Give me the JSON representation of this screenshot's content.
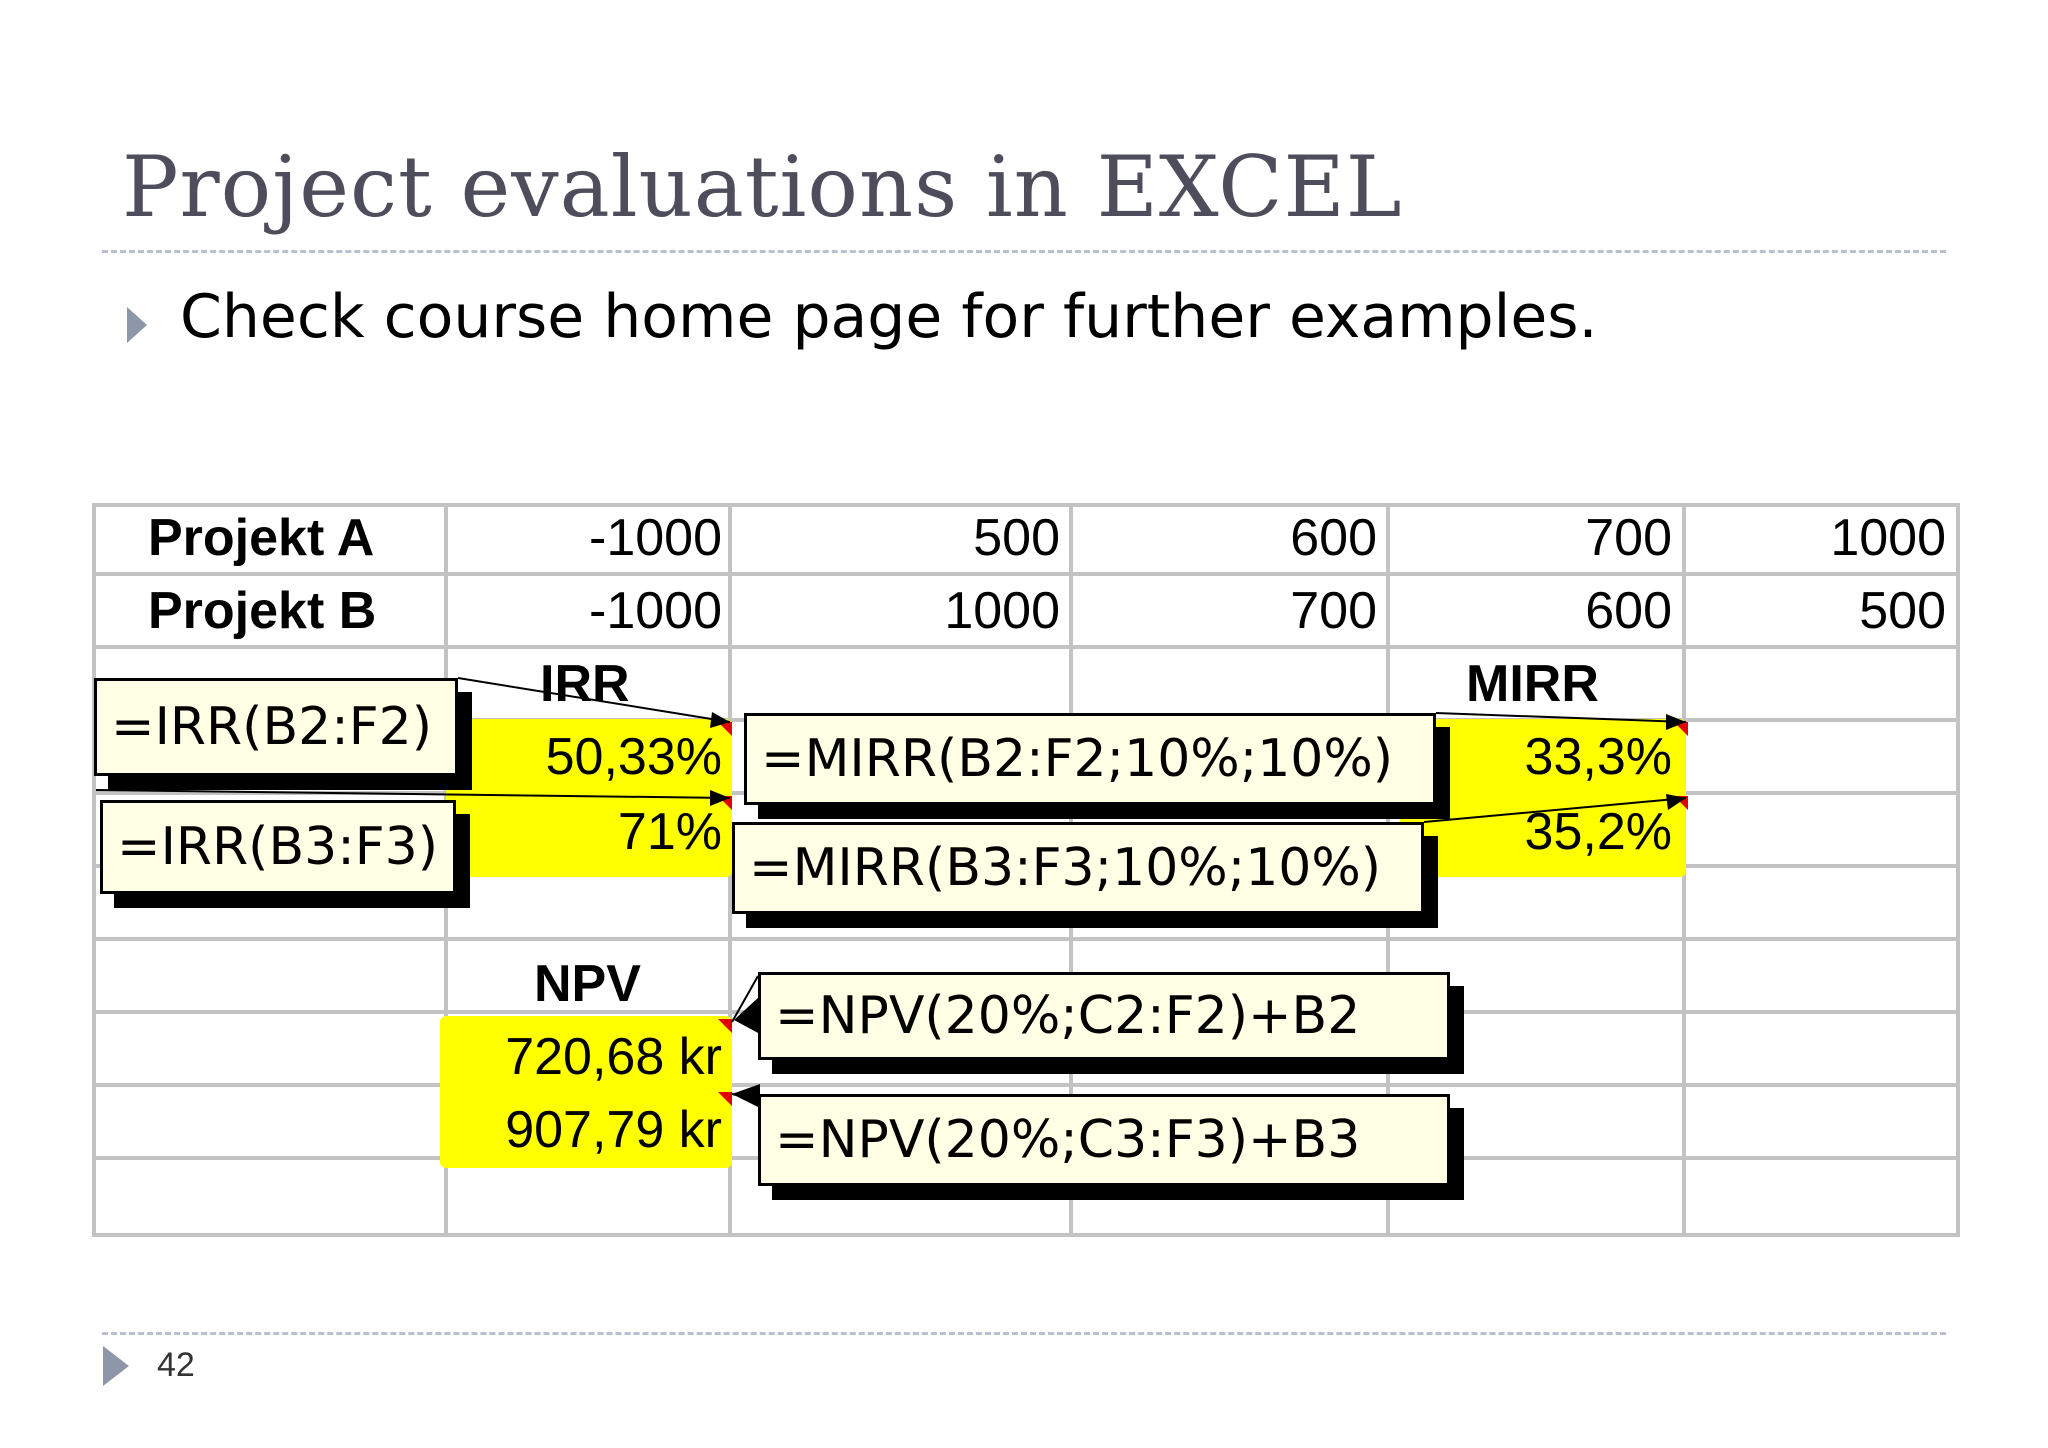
{
  "slide": {
    "title": "Project evaluations in EXCEL",
    "bullet": "Check course home page for further examples.",
    "page_number": "42"
  },
  "sheet": {
    "rows": [
      {
        "label": "Projekt A",
        "values": [
          "-1000",
          "500",
          "600",
          "700",
          "1000"
        ]
      },
      {
        "label": "Projekt B",
        "values": [
          "-1000",
          "1000",
          "700",
          "600",
          "500"
        ]
      }
    ],
    "irr": {
      "header": "IRR",
      "a": "50,33%",
      "b": "71%"
    },
    "mirr": {
      "header": "MIRR",
      "a": "33,3%",
      "b": "35,2%"
    },
    "npv": {
      "header": "NPV",
      "a": "720,68 kr",
      "b": "907,79 kr"
    }
  },
  "comments": {
    "irr_a": "=IRR(B2:F2)",
    "irr_b": "=IRR(B3:F3)",
    "mirr_a": "=MIRR(B2:F2;10%;10%)",
    "mirr_b": "=MIRR(B3:F3;10%;10%)",
    "npv_a": "=NPV(20%;C2:F2)+B2",
    "npv_b": "=NPV(20%;C3:F3)+B3"
  },
  "colors": {
    "highlight": "#ffff00",
    "comment_bg": "#ffffe5",
    "grid": "#c3c3c3",
    "title": "#4d4d5c",
    "bullet": "#8d97a8"
  }
}
